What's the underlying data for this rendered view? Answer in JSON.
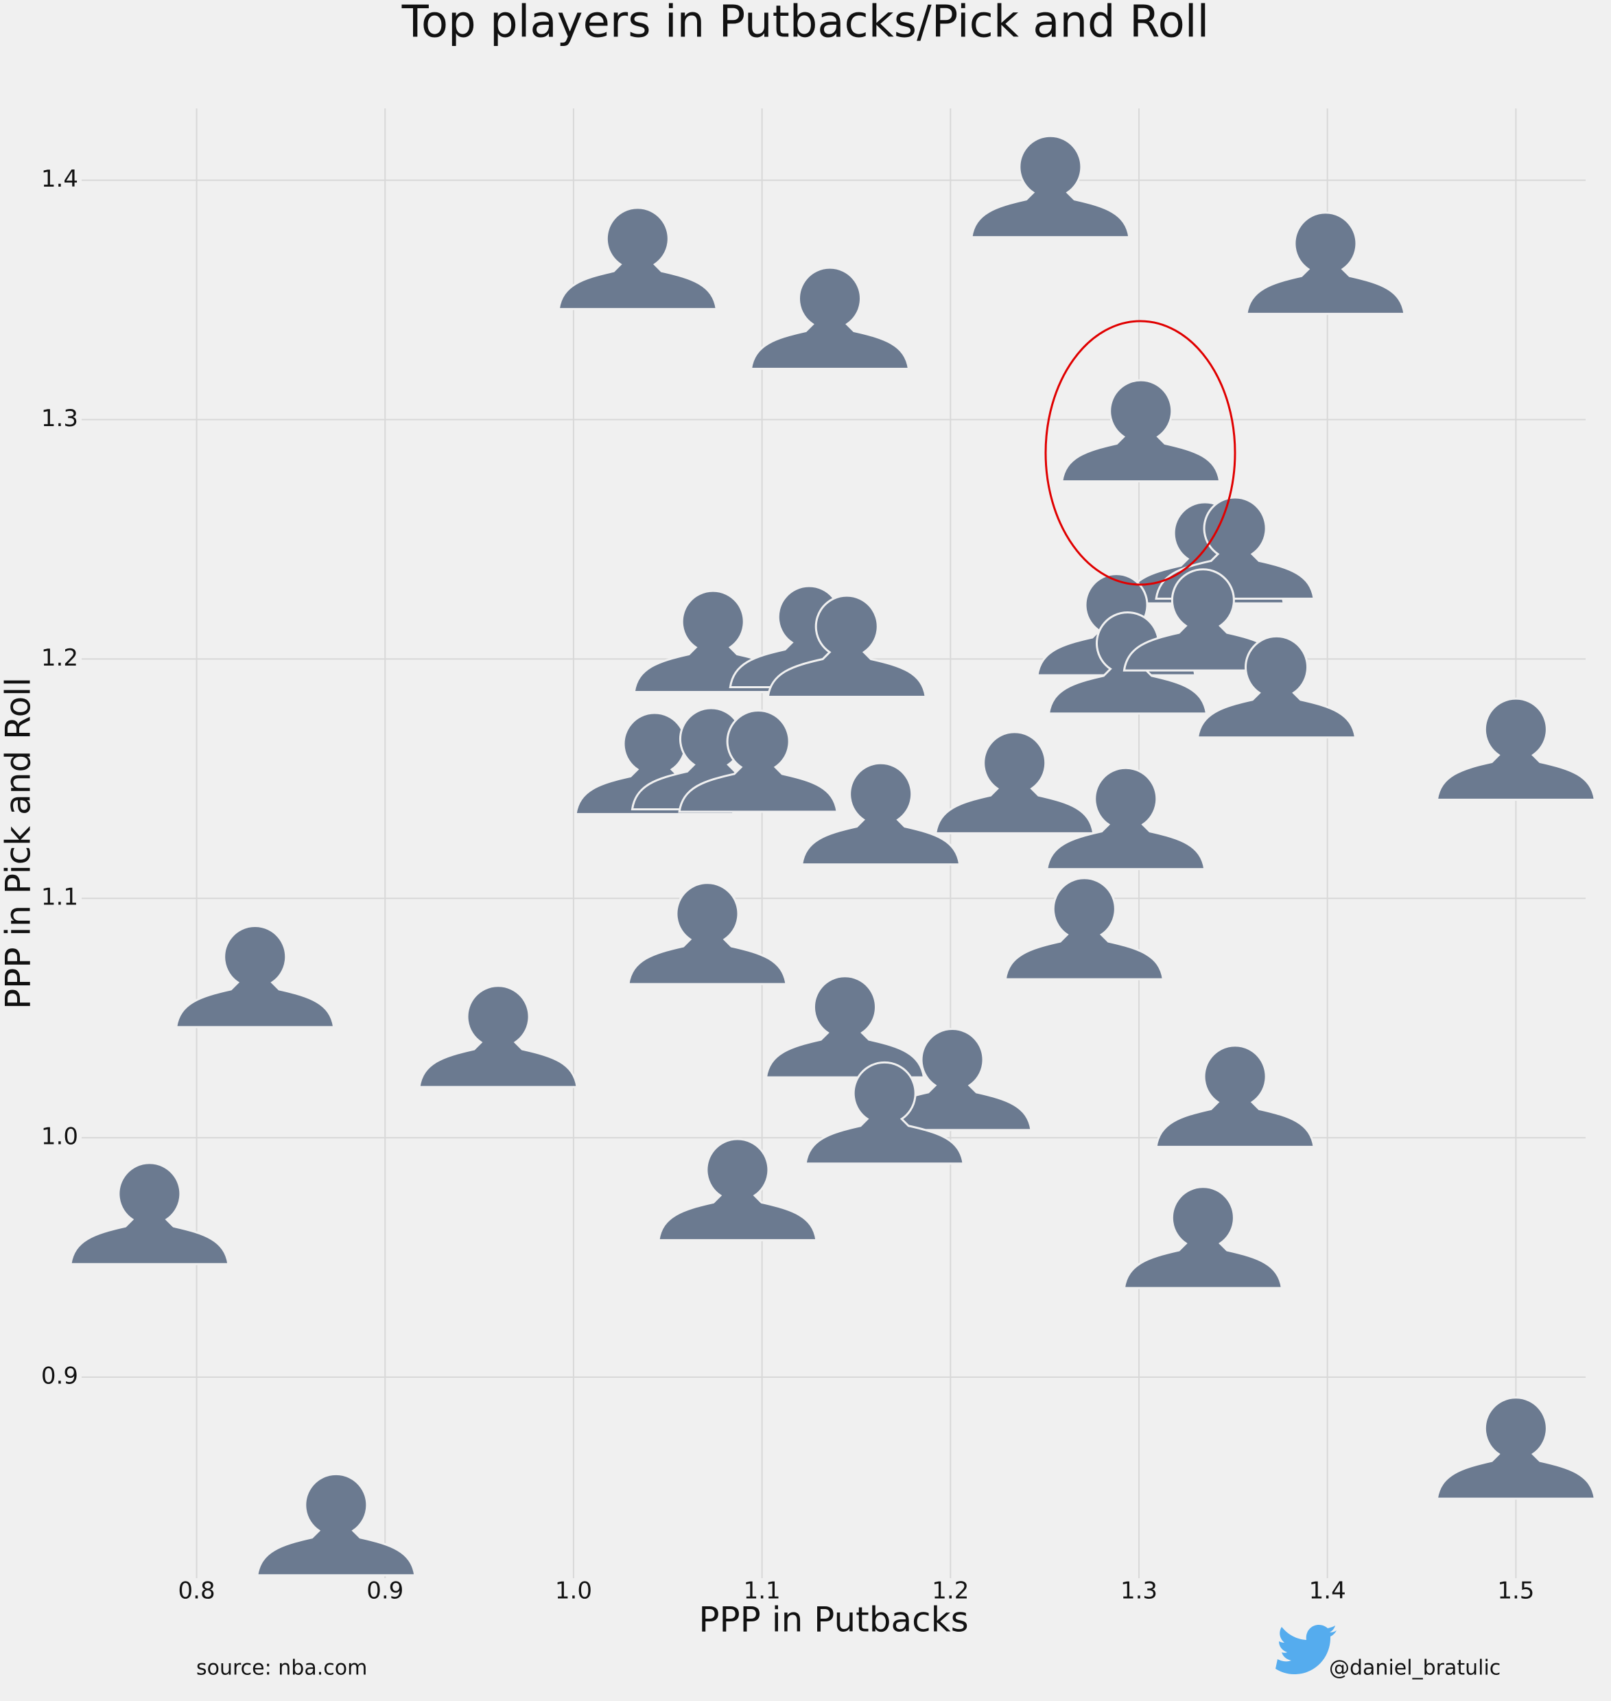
{
  "chart_data": {
    "type": "scatter",
    "title": "Top players in Putbacks/Pick and Roll",
    "x_label": "PPP in Putbacks",
    "y_label": "PPP in Pick and Roll",
    "annotations": [
      "source: nba.com",
      "@daniel_bratulic"
    ],
    "x": [
      1.034,
      1.253,
      1.399,
      1.136,
      1.301,
      1.335,
      1.351,
      1.288,
      1.294,
      1.334,
      1.373,
      1.074,
      1.125,
      1.145,
      1.043,
      1.073,
      1.098,
      1.163,
      1.234,
      1.293,
      1.5,
      1.271,
      1.071,
      0.831,
      0.96,
      1.144,
      1.201,
      1.165,
      1.351,
      1.087,
      1.334,
      0.775,
      1.5,
      0.874
    ],
    "y": [
      1.372,
      1.402,
      1.37,
      1.347,
      1.3,
      1.249,
      1.251,
      1.219,
      1.203,
      1.221,
      1.193,
      1.212,
      1.214,
      1.21,
      1.161,
      1.163,
      1.162,
      1.14,
      1.153,
      1.138,
      1.167,
      1.092,
      1.09,
      1.072,
      1.047,
      1.051,
      1.029,
      1.015,
      1.022,
      0.983,
      0.963,
      0.973,
      0.875,
      0.843
    ],
    "color": "#6b7a90",
    "xlim": [
      0.739,
      1.537
    ],
    "ylim": [
      0.816,
      1.43
    ],
    "xticks": [
      0.8,
      0.9,
      {
        "value": 1,
        "label": "1.0"
      },
      1.1,
      1.2,
      1.3,
      1.4,
      1.5
    ],
    "yticks": [
      0.9,
      {
        "value": 1,
        "label": "1.0"
      },
      1.1,
      1.2,
      1.3,
      1.4
    ],
    "grid": true
  }
}
